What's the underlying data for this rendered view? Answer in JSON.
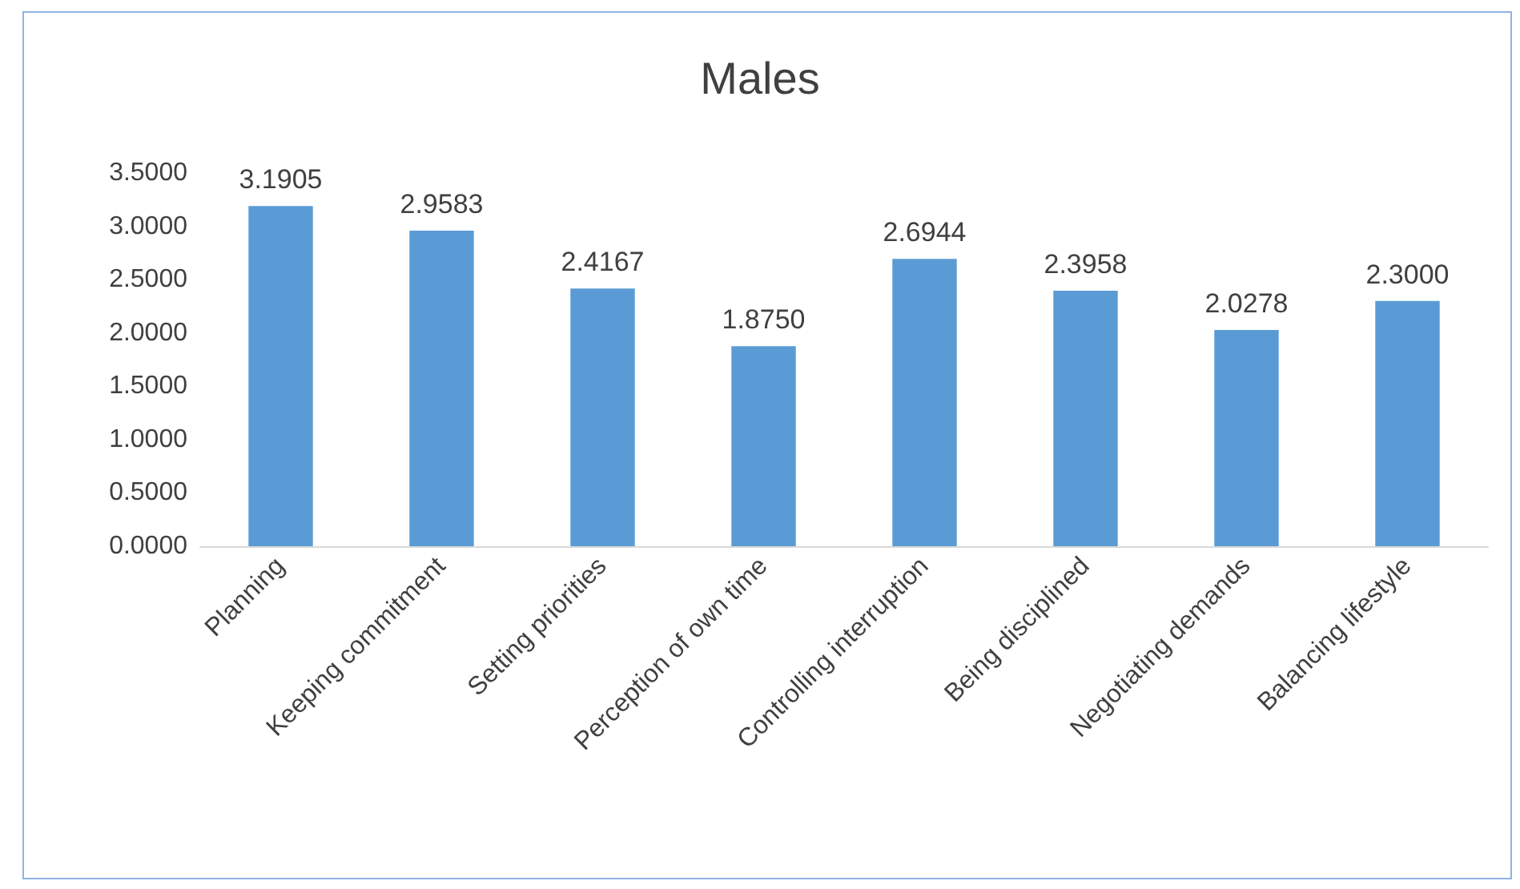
{
  "chart_data": {
    "type": "bar",
    "title": "Males",
    "categories": [
      "Planning",
      "Keeping commitment",
      "Setting priorities",
      "Perception of own time",
      "Controlling interruption",
      "Being disciplined",
      "Negotiating demands",
      "Balancing lifestyle"
    ],
    "values": [
      3.1905,
      2.9583,
      2.4167,
      1.875,
      2.6944,
      2.3958,
      2.0278,
      2.3
    ],
    "value_labels": [
      "3.1905",
      "2.9583",
      "2.4167",
      "1.8750",
      "2.6944",
      "2.3958",
      "2.0278",
      "2.3000"
    ],
    "color": "#5b9bd5",
    "ylim": [
      0,
      3.5
    ],
    "yticks": [
      {
        "value": 0,
        "label": "0.0000"
      },
      {
        "value": 0.5,
        "label": "0.5000"
      },
      {
        "value": 1,
        "label": "1.0000"
      },
      {
        "value": 1.5,
        "label": "1.5000"
      },
      {
        "value": 2,
        "label": "2.0000"
      },
      {
        "value": 2.5,
        "label": "2.5000"
      },
      {
        "value": 3,
        "label": "3.0000"
      },
      {
        "value": 3.5,
        "label": "3.5000"
      }
    ],
    "grid": false
  }
}
